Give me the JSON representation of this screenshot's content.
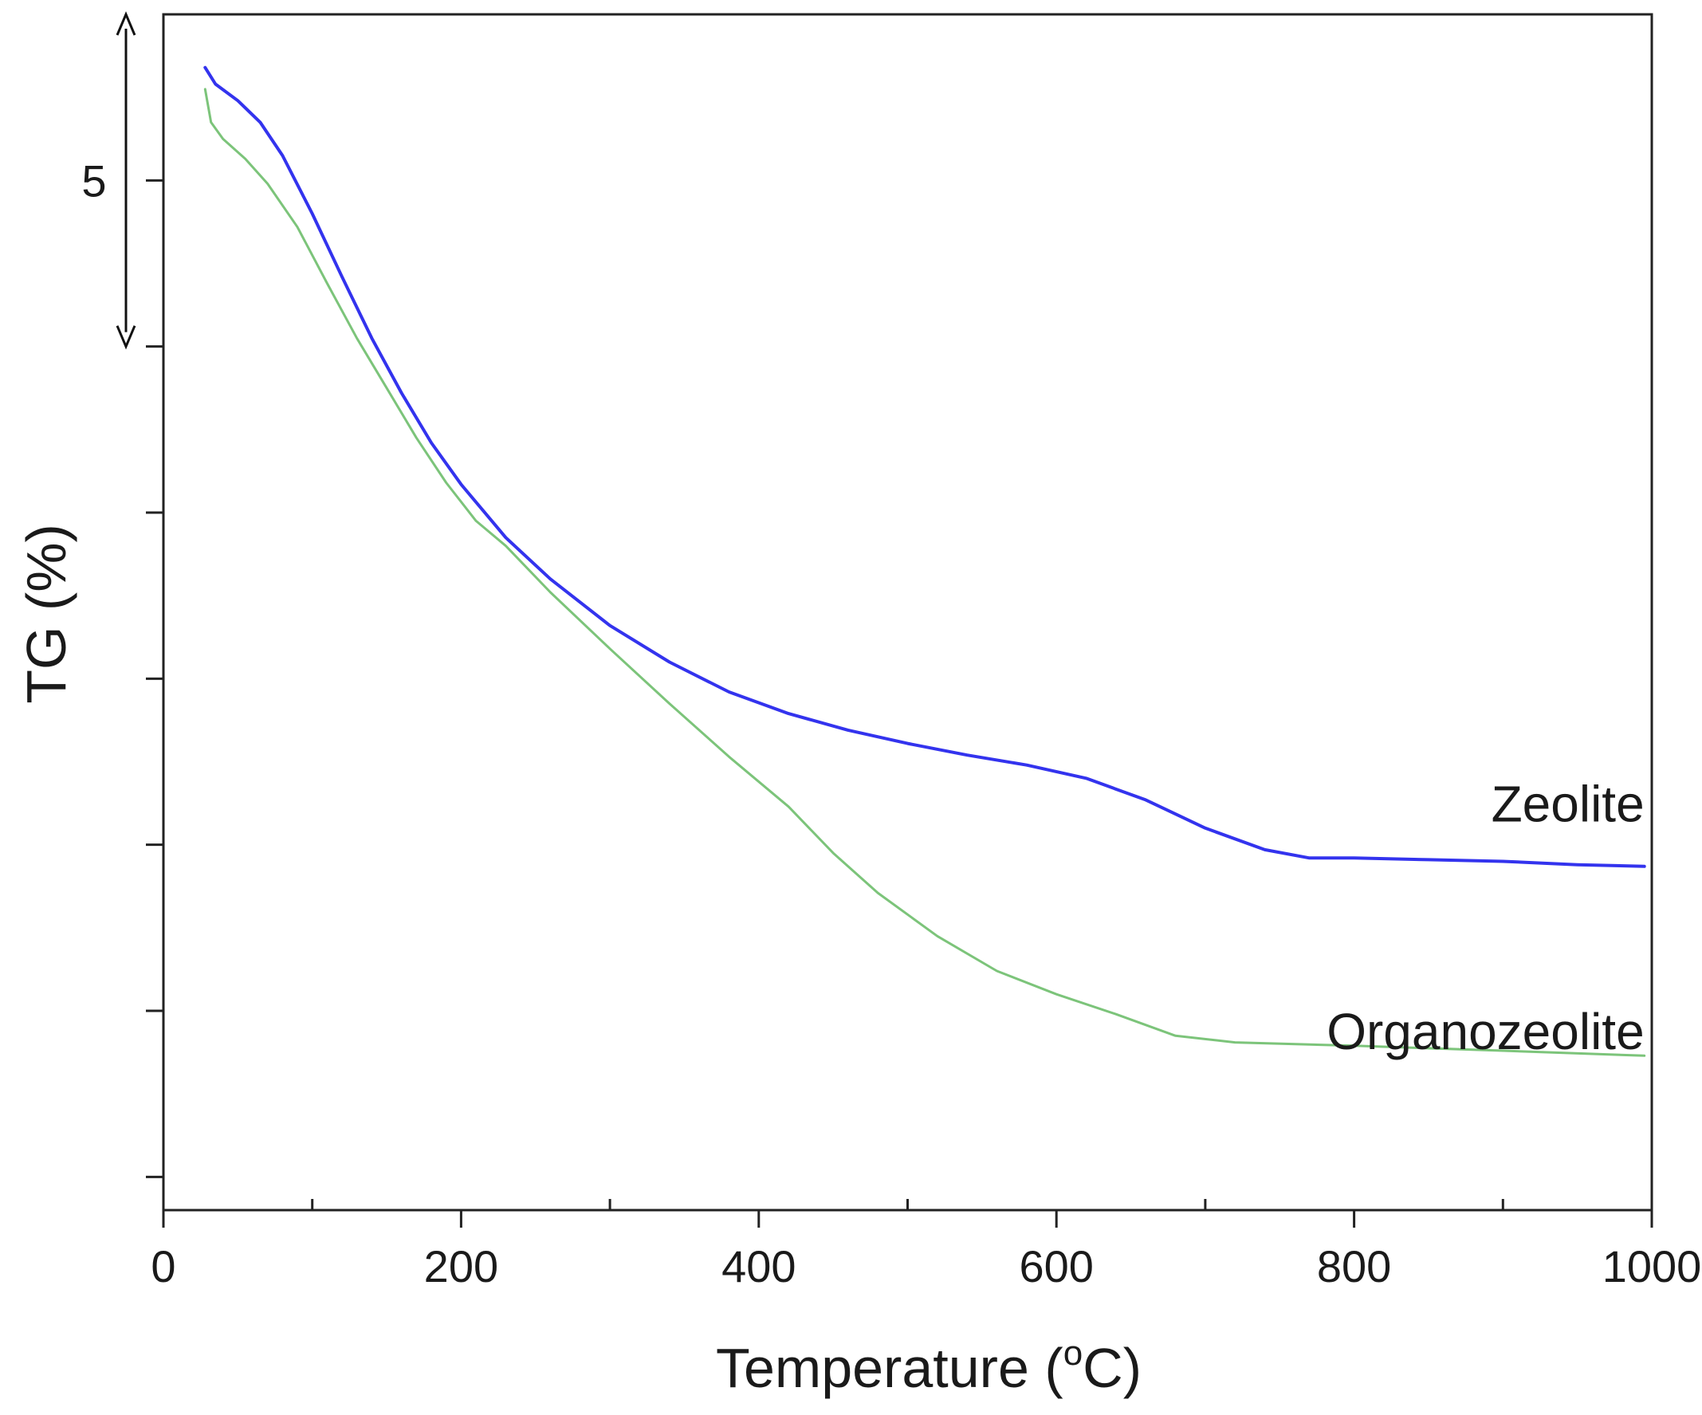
{
  "chart_data": {
    "type": "line",
    "title": "",
    "xlabel": "Temperature (",
    "xlabel_sup": "o",
    "xlabel_unit": "C)",
    "ylabel": "TG (%)",
    "xlim": [
      0,
      1000
    ],
    "ylim": [
      0,
      7.2
    ],
    "x_ticks": [
      0,
      200,
      400,
      600,
      800,
      1000
    ],
    "x_minor_ticks": [
      100,
      300,
      500,
      700,
      900
    ],
    "y_ticks": [
      0.2,
      1.2,
      2.2,
      3.2,
      4.2,
      5.2,
      6.2
    ],
    "scale_bar": {
      "label": "5",
      "from": 5.2,
      "to": 7.2
    },
    "grid": false,
    "series": [
      {
        "name": "Zeolite",
        "color": "#3333ee",
        "points": [
          [
            28,
            6.88
          ],
          [
            35,
            6.78
          ],
          [
            50,
            6.68
          ],
          [
            65,
            6.55
          ],
          [
            80,
            6.35
          ],
          [
            100,
            6.0
          ],
          [
            120,
            5.62
          ],
          [
            140,
            5.25
          ],
          [
            160,
            4.92
          ],
          [
            180,
            4.62
          ],
          [
            200,
            4.37
          ],
          [
            230,
            4.05
          ],
          [
            260,
            3.8
          ],
          [
            300,
            3.52
          ],
          [
            340,
            3.3
          ],
          [
            380,
            3.12
          ],
          [
            420,
            2.99
          ],
          [
            460,
            2.89
          ],
          [
            500,
            2.81
          ],
          [
            540,
            2.74
          ],
          [
            580,
            2.68
          ],
          [
            620,
            2.6
          ],
          [
            660,
            2.47
          ],
          [
            700,
            2.3
          ],
          [
            740,
            2.17
          ],
          [
            770,
            2.12
          ],
          [
            800,
            2.12
          ],
          [
            850,
            2.11
          ],
          [
            900,
            2.1
          ],
          [
            950,
            2.08
          ],
          [
            995,
            2.07
          ]
        ]
      },
      {
        "name": "Organozeolite",
        "color": "#7cc47a",
        "points": [
          [
            28,
            6.75
          ],
          [
            32,
            6.55
          ],
          [
            40,
            6.45
          ],
          [
            55,
            6.33
          ],
          [
            70,
            6.18
          ],
          [
            90,
            5.92
          ],
          [
            110,
            5.58
          ],
          [
            130,
            5.25
          ],
          [
            150,
            4.95
          ],
          [
            170,
            4.65
          ],
          [
            190,
            4.38
          ],
          [
            210,
            4.15
          ],
          [
            230,
            4.0
          ],
          [
            260,
            3.72
          ],
          [
            300,
            3.38
          ],
          [
            340,
            3.05
          ],
          [
            380,
            2.73
          ],
          [
            420,
            2.43
          ],
          [
            450,
            2.15
          ],
          [
            480,
            1.91
          ],
          [
            520,
            1.65
          ],
          [
            560,
            1.44
          ],
          [
            600,
            1.3
          ],
          [
            640,
            1.18
          ],
          [
            680,
            1.05
          ],
          [
            720,
            1.01
          ],
          [
            800,
            0.99
          ],
          [
            900,
            0.96
          ],
          [
            995,
            0.93
          ]
        ]
      }
    ],
    "annotations": [
      {
        "text": "Zeolite",
        "x": 995,
        "y": 2.34
      },
      {
        "text": "Organozeolite",
        "x": 995,
        "y": 0.97
      }
    ]
  }
}
